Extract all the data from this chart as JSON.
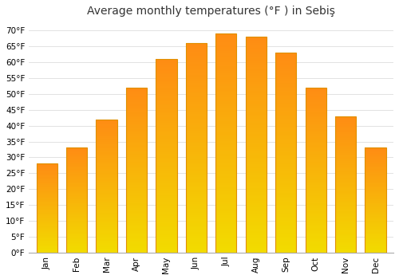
{
  "title": "Average monthly temperatures (°F ) in Sebiş",
  "months": [
    "Jan",
    "Feb",
    "Mar",
    "Apr",
    "May",
    "Jun",
    "Jul",
    "Aug",
    "Sep",
    "Oct",
    "Nov",
    "Dec"
  ],
  "values": [
    28,
    33,
    42,
    52,
    61,
    66,
    69,
    68,
    63,
    52,
    43,
    33
  ],
  "bar_color": "#FFBB33",
  "bar_edge_color": "#E09000",
  "background_color": "#FFFFFF",
  "grid_color": "#DDDDDD",
  "yticks": [
    0,
    5,
    10,
    15,
    20,
    25,
    30,
    35,
    40,
    45,
    50,
    55,
    60,
    65,
    70
  ],
  "ylim": [
    0,
    73
  ],
  "title_fontsize": 10,
  "tick_fontsize": 7.5,
  "font_family": "DejaVu Sans"
}
